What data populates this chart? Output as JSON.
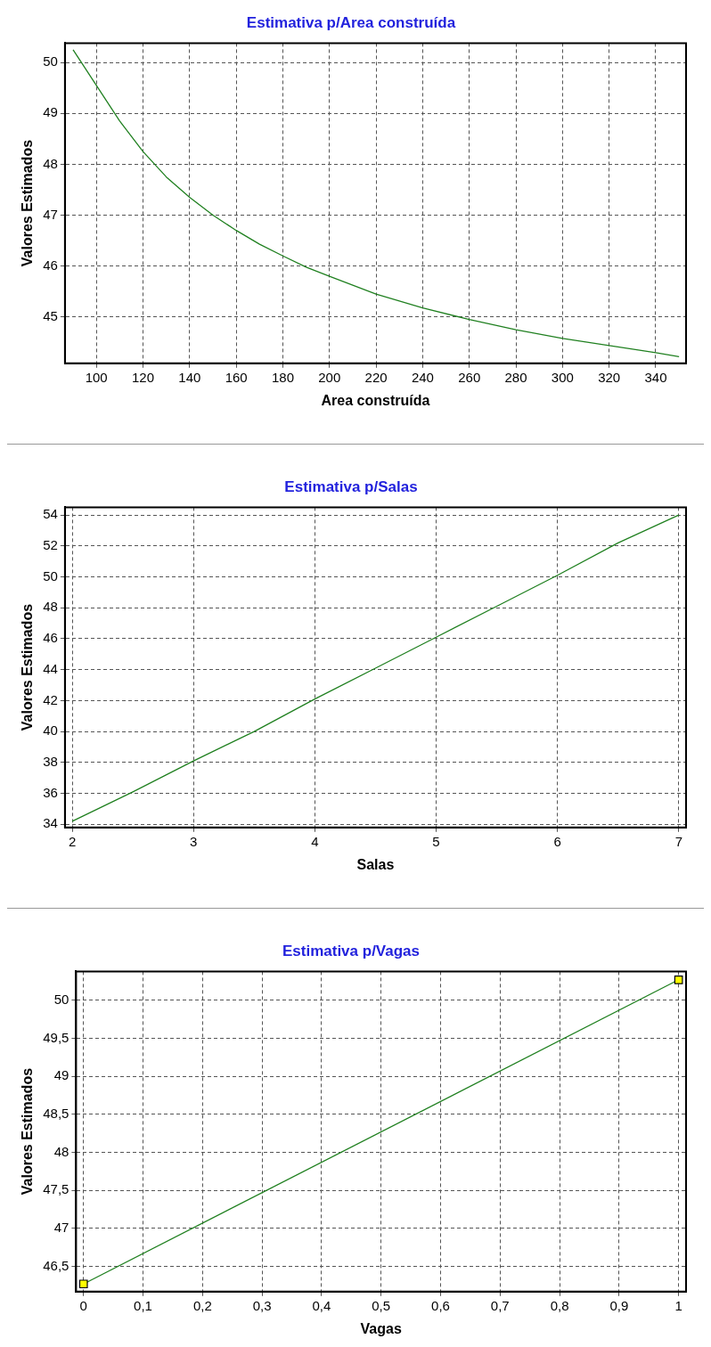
{
  "chart_data": [
    {
      "type": "line",
      "title": "Estimativa p/Area construída",
      "xlabel": "Area construída",
      "ylabel": "Valores Estimados",
      "x": [
        90,
        100,
        110,
        120,
        130,
        140,
        150,
        160,
        170,
        180,
        190,
        200,
        220,
        240,
        260,
        280,
        300,
        320,
        340,
        350
      ],
      "series": [
        {
          "color": "#208020",
          "values": [
            50.25,
            49.55,
            48.85,
            48.25,
            47.75,
            47.35,
            47.0,
            46.7,
            46.43,
            46.2,
            45.98,
            45.8,
            45.45,
            45.18,
            44.95,
            44.75,
            44.58,
            44.44,
            44.3,
            44.22
          ]
        }
      ],
      "xlim": [
        86.5,
        353
      ],
      "xticks": [
        100,
        120,
        140,
        160,
        180,
        200,
        220,
        240,
        260,
        280,
        300,
        320,
        340
      ],
      "ylim": [
        44.09,
        50.38
      ],
      "yticks": [
        45,
        46,
        47,
        48,
        49,
        50
      ],
      "grid": true,
      "legend": false,
      "marker": "none",
      "line_style": "solid"
    },
    {
      "type": "line",
      "title": "Estimativa p/Salas",
      "xlabel": "Salas",
      "ylabel": "Valores Estimados",
      "x": [
        2,
        2.5,
        3,
        3.5,
        4,
        4.5,
        5,
        5.5,
        6,
        6.5,
        7
      ],
      "series": [
        {
          "color": "#208020",
          "values": [
            34.2,
            36.1,
            38.1,
            40.0,
            42.1,
            44.1,
            46.1,
            48.1,
            50.1,
            52.2,
            54.0
          ]
        }
      ],
      "xlim": [
        1.94,
        7.06
      ],
      "xticks": [
        2,
        3,
        4,
        5,
        6,
        7
      ],
      "ylim": [
        33.8,
        54.5
      ],
      "yticks": [
        34,
        36,
        38,
        40,
        42,
        44,
        46,
        48,
        50,
        52,
        54
      ],
      "grid": true,
      "legend": false,
      "marker": "none",
      "line_style": "solid"
    },
    {
      "type": "line",
      "title": "Estimativa p/Vagas",
      "xlabel": "Vagas",
      "ylabel": "Valores Estimados",
      "x": [
        0,
        1
      ],
      "series": [
        {
          "color": "#208020",
          "colors": [
            "#ffff00",
            "#ffff00"
          ],
          "values": [
            46.27,
            50.27
          ]
        }
      ],
      "xlim": [
        -0.0125,
        1.0125
      ],
      "xticks": [
        0,
        {
          "value": 0.1,
          "label": "0,1"
        },
        {
          "value": 0.2,
          "label": "0,2"
        },
        {
          "value": 0.3,
          "label": "0,3"
        },
        {
          "value": 0.4,
          "label": "0,4"
        },
        {
          "value": 0.5,
          "label": "0,5"
        },
        {
          "value": 0.6,
          "label": "0,6"
        },
        {
          "value": 0.7,
          "label": "0,7"
        },
        {
          "value": 0.8,
          "label": "0,8"
        },
        {
          "value": 0.9,
          "label": "0,9"
        },
        1
      ],
      "ylim": [
        46.17,
        50.38
      ],
      "yticks": [
        {
          "value": 46.5,
          "label": "46,5"
        },
        47,
        {
          "value": 47.5,
          "label": "47,5"
        },
        48,
        {
          "value": 48.5,
          "label": "48,5"
        },
        49,
        {
          "value": 49.5,
          "label": "49,5"
        },
        50
      ],
      "grid": true,
      "legend": false,
      "marker": "square",
      "line_style": "solid"
    }
  ]
}
